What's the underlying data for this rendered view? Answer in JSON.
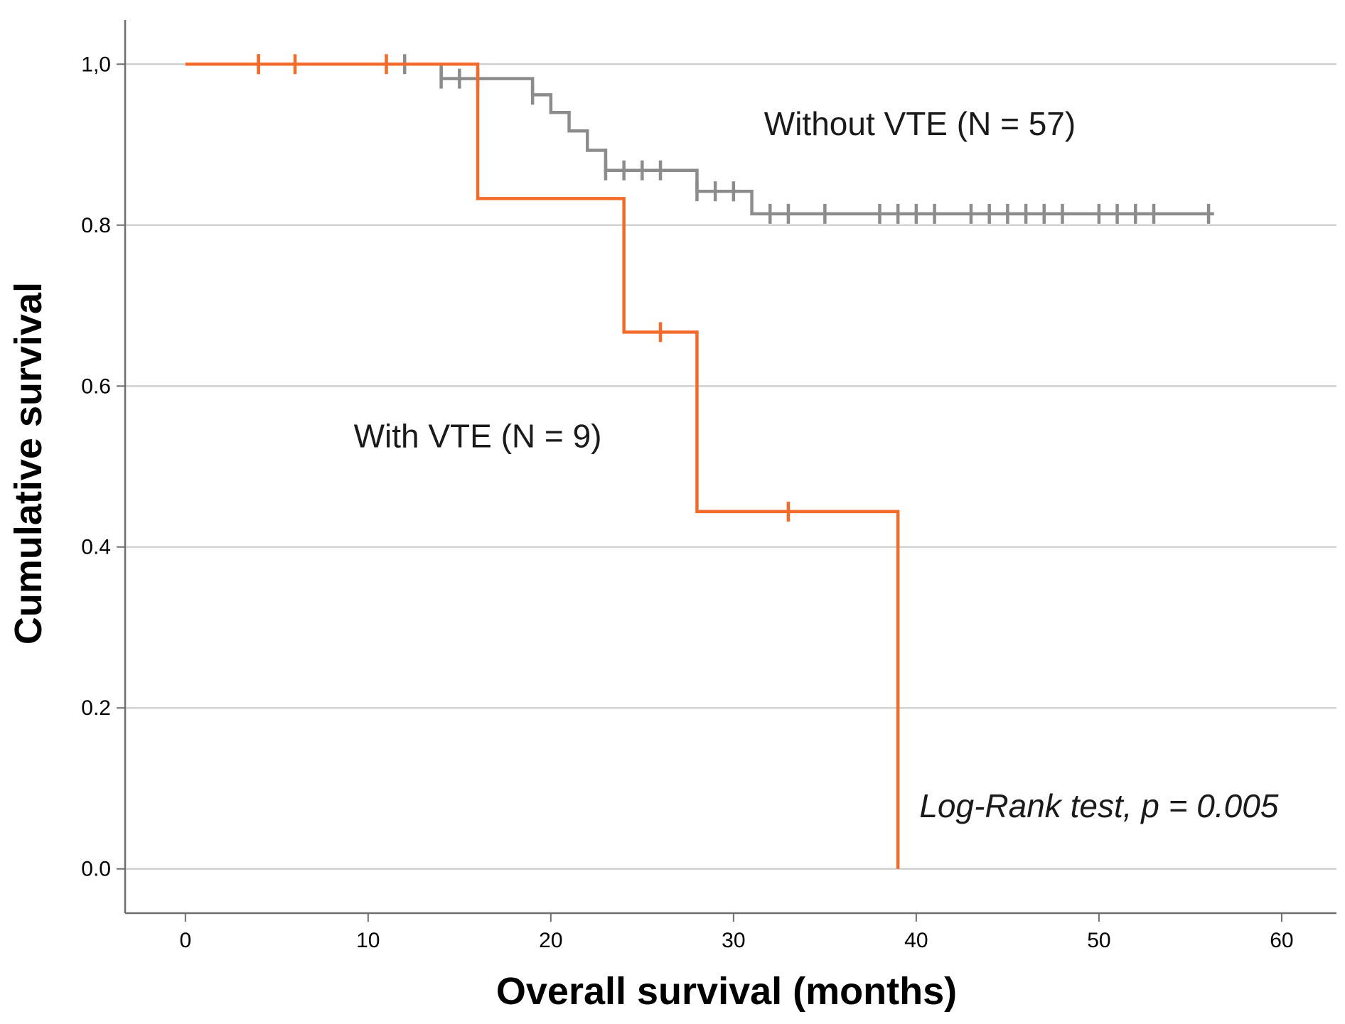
{
  "chart_data": {
    "type": "line",
    "subtype": "kaplan-meier-step",
    "title": "",
    "xlabel": "Overall survival (months)",
    "ylabel": "Cumulative survival",
    "xlim": [
      -3.3,
      63
    ],
    "ylim": [
      -0.055,
      1.055
    ],
    "x_ticks": [
      0,
      10,
      20,
      30,
      40,
      50,
      60
    ],
    "x_tick_labels": [
      "0",
      "10",
      "20",
      "30",
      "40",
      "50",
      "60"
    ],
    "y_ticks": [
      0.0,
      0.2,
      0.4,
      0.6,
      0.8,
      1.0
    ],
    "y_tick_labels": [
      "0.0",
      "0.2",
      "0.4",
      "0.6",
      "0.8",
      "1,0"
    ],
    "grid": "horizontal",
    "series": [
      {
        "name": "Without VTE (N = 57)",
        "color": "#8c8c8c",
        "steps": [
          [
            0,
            1.0
          ],
          [
            14,
            0.982
          ],
          [
            19,
            0.962
          ],
          [
            20,
            0.94
          ],
          [
            21,
            0.917
          ],
          [
            22,
            0.893
          ],
          [
            23,
            0.868
          ],
          [
            28,
            0.842
          ],
          [
            31,
            0.814
          ],
          [
            56.3,
            0.814
          ]
        ],
        "censored": [
          [
            4,
            1.0
          ],
          [
            12,
            1.0
          ],
          [
            14,
            0.982
          ],
          [
            15,
            0.982
          ],
          [
            16,
            0.982
          ],
          [
            19,
            0.962
          ],
          [
            23,
            0.868
          ],
          [
            24,
            0.868
          ],
          [
            25,
            0.868
          ],
          [
            26,
            0.868
          ],
          [
            28,
            0.842
          ],
          [
            29,
            0.842
          ],
          [
            30,
            0.842
          ],
          [
            32,
            0.814
          ],
          [
            33,
            0.814
          ],
          [
            35,
            0.814
          ],
          [
            38,
            0.814
          ],
          [
            39,
            0.814
          ],
          [
            40,
            0.814
          ],
          [
            41,
            0.814
          ],
          [
            43,
            0.814
          ],
          [
            44,
            0.814
          ],
          [
            45,
            0.814
          ],
          [
            46,
            0.814
          ],
          [
            47,
            0.814
          ],
          [
            48,
            0.814
          ],
          [
            50,
            0.814
          ],
          [
            51,
            0.814
          ],
          [
            52,
            0.814
          ],
          [
            53,
            0.814
          ],
          [
            56,
            0.814
          ]
        ]
      },
      {
        "name": "With VTE (N = 9)",
        "color": "#f26b2a",
        "steps": [
          [
            0,
            1.0
          ],
          [
            16,
            0.833
          ],
          [
            24,
            0.667
          ],
          [
            28,
            0.444
          ],
          [
            39,
            0.0
          ]
        ],
        "censored": [
          [
            4,
            1.0
          ],
          [
            6,
            1.0
          ],
          [
            11,
            1.0
          ],
          [
            26,
            0.667
          ],
          [
            33,
            0.444
          ]
        ]
      }
    ],
    "annotations": [
      {
        "id": "without",
        "text": "Without VTE (N = 57)",
        "x": 40.2,
        "y": 0.912,
        "style": "normal"
      },
      {
        "id": "with",
        "text": "With VTE (N = 9)",
        "x": 16,
        "y": 0.524,
        "style": "normal"
      },
      {
        "id": "logrank",
        "text": "Log-Rank test, p = 0.005",
        "x": 50,
        "y": 0.064,
        "style": "italic"
      }
    ]
  }
}
